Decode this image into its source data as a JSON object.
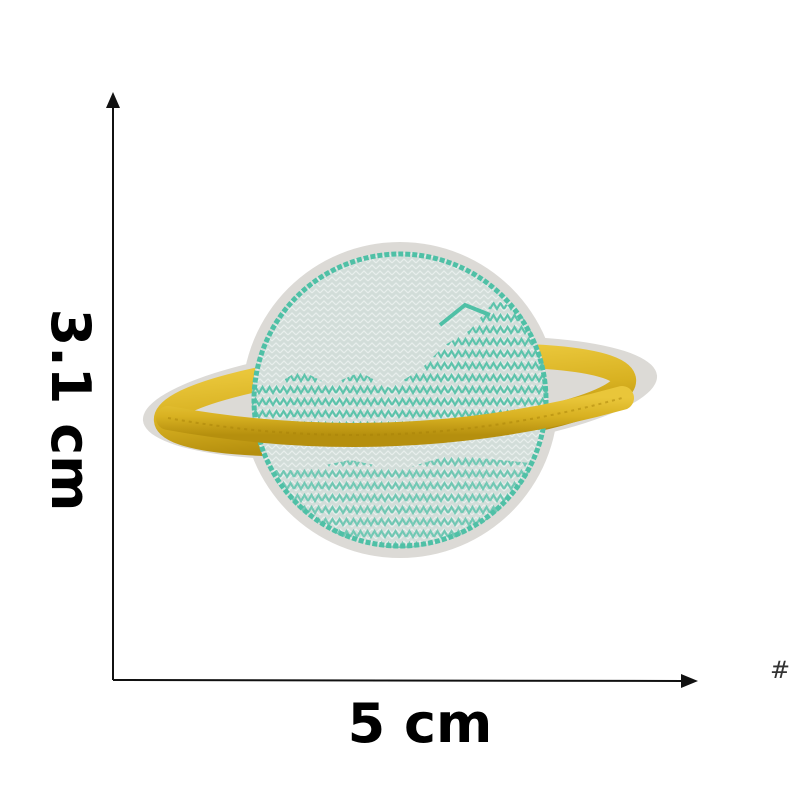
{
  "dimensions": {
    "width_label": "5 cm",
    "height_label": "3.1 cm"
  },
  "corner_mark": "#",
  "patch": {
    "subject": "saturn-planet-patch",
    "colors": {
      "background": "#ffffff",
      "felt_border": "#dcdad6",
      "planet_fill": "#d2ddd9",
      "planet_stitch": "#4fc0a6",
      "ring_gold": "#d8b121",
      "ring_gold_dark": "#a88208",
      "axis_line": "#111111"
    }
  }
}
